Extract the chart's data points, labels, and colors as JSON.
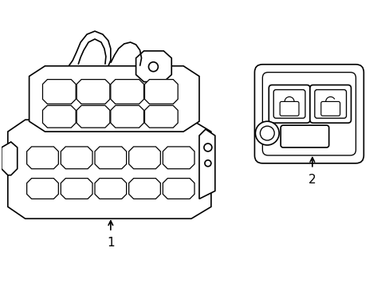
{
  "background_color": "#ffffff",
  "line_color": "#000000",
  "line_width": 1.2,
  "label1": "1",
  "label2": "2",
  "figsize": [
    4.89,
    3.6
  ],
  "dpi": 100
}
